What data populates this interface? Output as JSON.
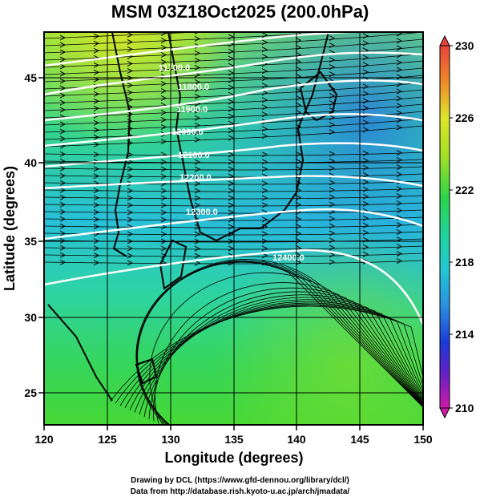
{
  "title": "MSM 03Z18Oct2025 (200.0hPa)",
  "map": {
    "lon_range": [
      120,
      150
    ],
    "lat_range": [
      22.5,
      48
    ],
    "x_ticks": [
      "120",
      "125",
      "130",
      "135",
      "140",
      "145",
      "150"
    ],
    "y_ticks": [
      "25",
      "30",
      "35",
      "40",
      "45"
    ],
    "x_label": "Longitude (degrees)",
    "y_label": "Latitude  (degrees)",
    "shading": "temperature",
    "contour_labels": [
      "11700.0",
      "11800.0",
      "11900.0",
      "12000.0",
      "12100.0",
      "12200.0",
      "12300.0",
      "12400.0"
    ],
    "vectors": "wind streamlines"
  },
  "colorbar": {
    "labels": [
      "230",
      "226",
      "222",
      "218",
      "214",
      "210"
    ]
  },
  "credits": {
    "line1": "Drawing by DCL (https://www.gfd-dennou.org/library/dcl/)",
    "line2": "Data from http://database.rish.kyoto-u.ac.jp/arch/jmadata/"
  }
}
